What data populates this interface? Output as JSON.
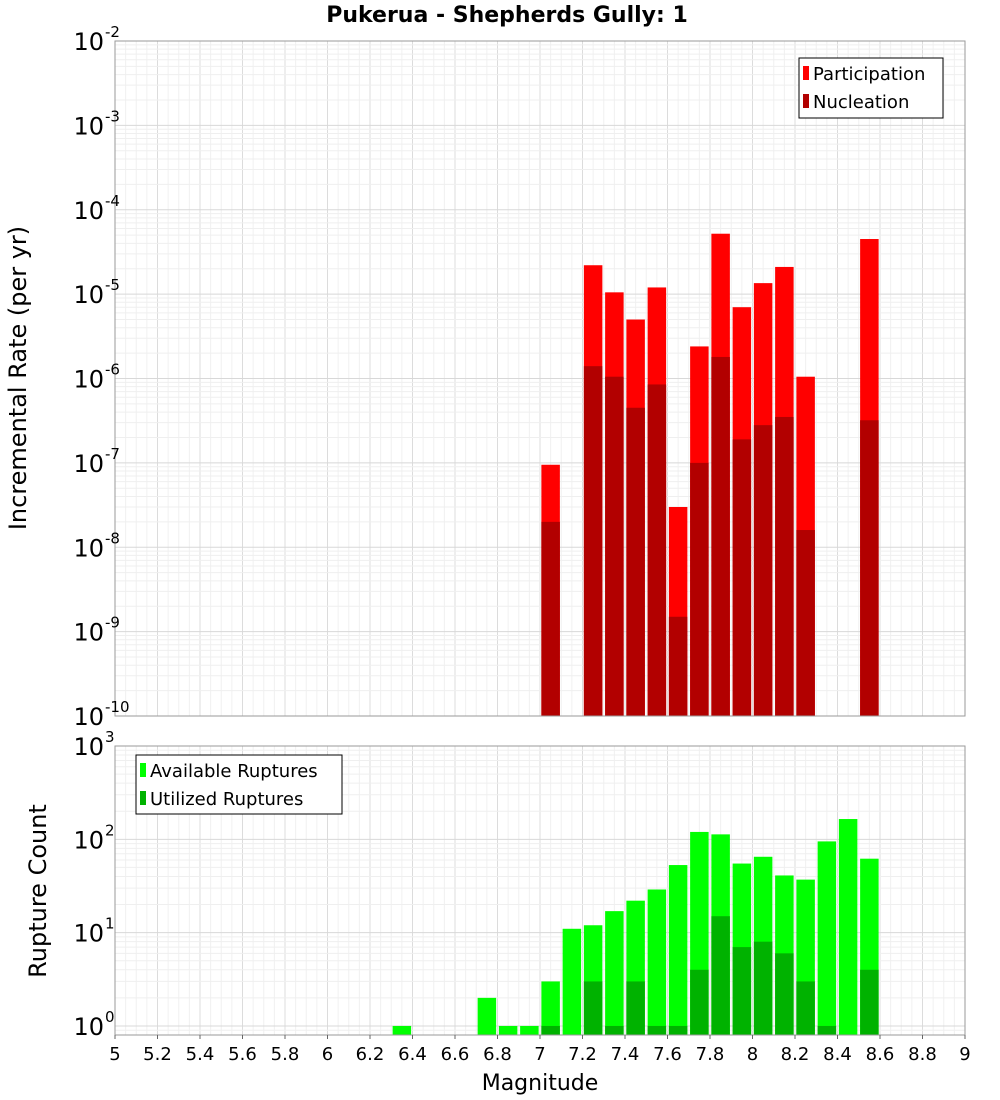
{
  "chart_data": {
    "title": "Pukerua - Shepherds Gully: 1",
    "xlabel": "Magnitude",
    "xlim": [
      5,
      9
    ],
    "xticks": [
      "5",
      "5.2",
      "5.4",
      "5.6",
      "5.8",
      "6",
      "6.2",
      "6.4",
      "6.6",
      "6.8",
      "7",
      "7.2",
      "7.4",
      "7.6",
      "7.8",
      "8",
      "8.2",
      "8.4",
      "8.6",
      "8.8",
      "9"
    ],
    "grid": true,
    "panels": [
      {
        "type": "bar",
        "yscale": "log",
        "ylabel": "Incremental Rate (per yr)",
        "ylim": [
          1e-10,
          0.01
        ],
        "yticks": [
          {
            "base": "10",
            "exp": "-2"
          },
          {
            "base": "10",
            "exp": "-3"
          },
          {
            "base": "10",
            "exp": "-4"
          },
          {
            "base": "10",
            "exp": "-5"
          },
          {
            "base": "10",
            "exp": "-6"
          },
          {
            "base": "10",
            "exp": "-7"
          },
          {
            "base": "10",
            "exp": "-8"
          },
          {
            "base": "10",
            "exp": "-9"
          },
          {
            "base": "10",
            "exp": "-10"
          }
        ],
        "legend_position": "top-right",
        "series": [
          {
            "name": "Participation",
            "color": "#ff0000",
            "x": [
              7.05,
              7.25,
              7.35,
              7.45,
              7.55,
              7.65,
              7.75,
              7.85,
              7.95,
              8.05,
              8.15,
              8.25,
              8.55
            ],
            "values": [
              9.5e-08,
              2.2e-05,
              1.05e-05,
              5e-06,
              1.2e-05,
              3e-08,
              2.4e-06,
              5.2e-05,
              7e-06,
              1.35e-05,
              2.1e-05,
              1.05e-06,
              4.5e-05
            ]
          },
          {
            "name": "Nucleation",
            "color": "#b20000",
            "x": [
              7.05,
              7.25,
              7.35,
              7.45,
              7.55,
              7.65,
              7.75,
              7.85,
              7.95,
              8.05,
              8.15,
              8.25,
              8.55
            ],
            "values": [
              2e-08,
              1.4e-06,
              1.05e-06,
              4.5e-07,
              8.5e-07,
              1.5e-09,
              1e-07,
              1.8e-06,
              1.9e-07,
              2.8e-07,
              3.5e-07,
              1.6e-08,
              3.2e-07
            ]
          }
        ]
      },
      {
        "type": "bar",
        "yscale": "log",
        "ylabel": "Rupture Count",
        "ylim": [
          0.8,
          1000
        ],
        "yticks": [
          {
            "base": "10",
            "exp": "3"
          },
          {
            "base": "10",
            "exp": "2"
          },
          {
            "base": "10",
            "exp": "1"
          },
          {
            "base": "10",
            "exp": "0"
          }
        ],
        "legend_position": "top-left",
        "series": [
          {
            "name": "Available Ruptures",
            "color": "#00ff00",
            "x": [
              6.35,
              6.75,
              6.85,
              6.95,
              7.05,
              7.15,
              7.25,
              7.35,
              7.45,
              7.55,
              7.65,
              7.75,
              7.85,
              7.95,
              8.05,
              8.15,
              8.25,
              8.35,
              8.45,
              8.55
            ],
            "values": [
              1,
              2,
              1,
              1,
              3,
              11,
              12,
              17,
              22,
              29,
              53,
              120,
              113,
              55,
              65,
              41,
              37,
              95,
              165,
              62
            ]
          },
          {
            "name": "Utilized Ruptures",
            "color": "#00b200",
            "x": [
              7.05,
              7.25,
              7.35,
              7.45,
              7.55,
              7.65,
              7.75,
              7.85,
              7.95,
              8.05,
              8.15,
              8.25,
              8.35,
              8.55
            ],
            "values": [
              1,
              3,
              1,
              3,
              1,
              1,
              4,
              15,
              7,
              8,
              6,
              3,
              1,
              4
            ]
          }
        ]
      }
    ]
  }
}
